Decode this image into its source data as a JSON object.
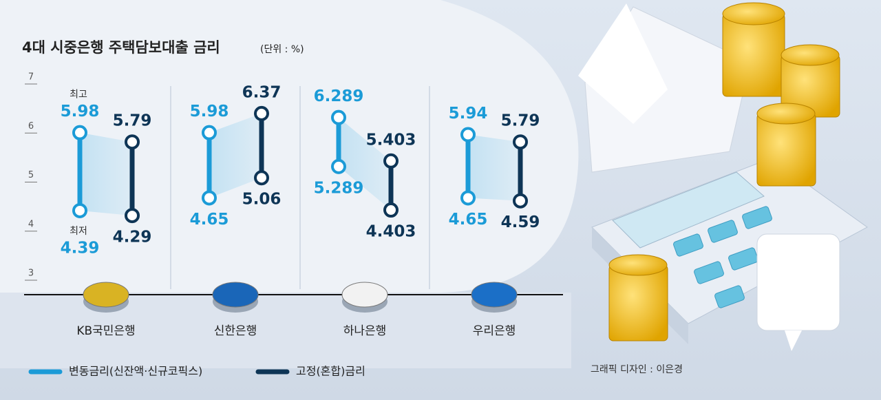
{
  "chart_data": {
    "type": "range",
    "title": "4대 시중은행 주택담보대출 금리",
    "subtitle": "(단위 : %)",
    "categories": [
      "KB국민은행",
      "신한은행",
      "하나은행",
      "우리은행"
    ],
    "series": [
      {
        "name": "변동금리(신잔액·신규코픽스)",
        "color": "#1b9bd7",
        "high": [
          5.98,
          5.98,
          6.289,
          5.94
        ],
        "low": [
          4.39,
          4.65,
          5.289,
          4.65
        ]
      },
      {
        "name": "고정(혼합)금리",
        "color": "#0e3556",
        "high": [
          5.79,
          6.37,
          5.403,
          5.79
        ],
        "low": [
          4.29,
          5.06,
          4.403,
          4.59
        ]
      }
    ],
    "annotations": {
      "high": "최고",
      "low": "최저"
    },
    "ylim": [
      3,
      7
    ],
    "yticks": [
      3,
      4,
      5,
      6,
      7
    ],
    "credit": "그래픽 디자인 : 이은경"
  }
}
